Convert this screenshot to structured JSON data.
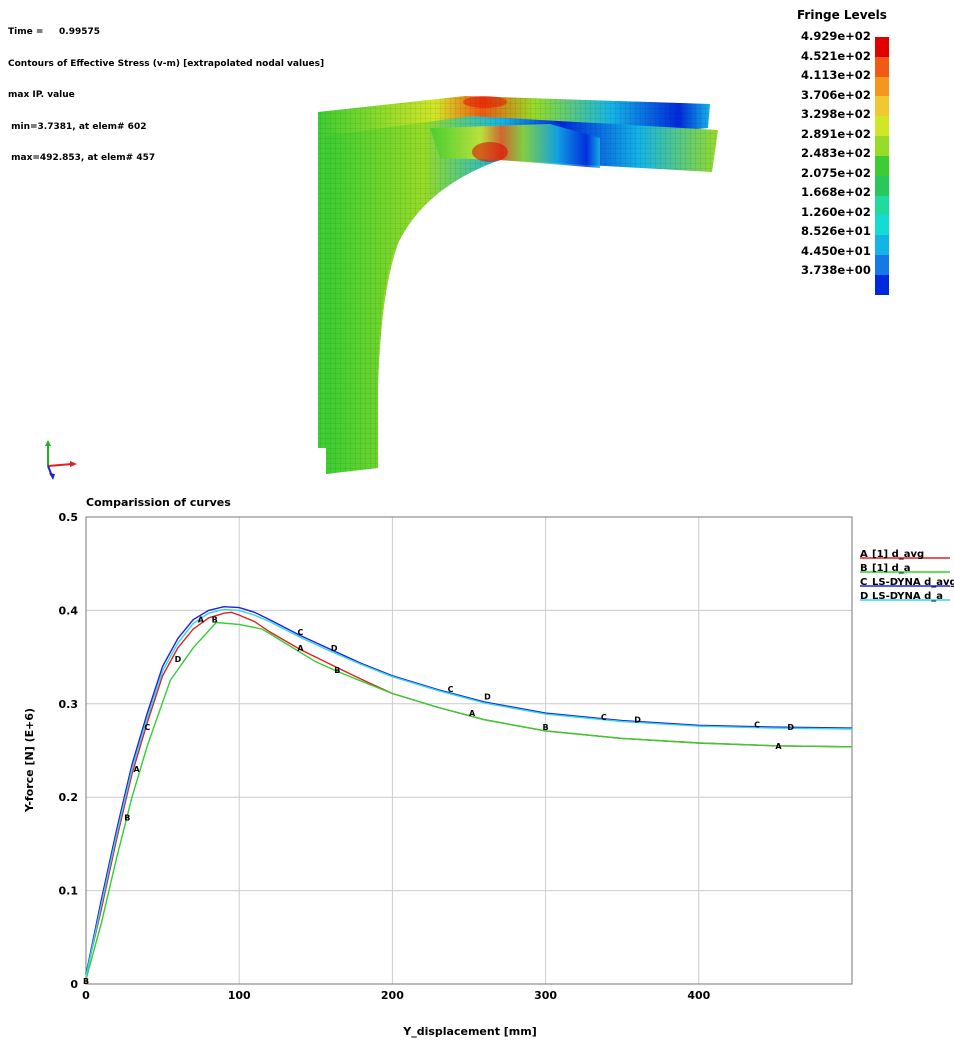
{
  "header": {
    "lines": [
      "Time =     0.99575",
      "Contours of Effective Stress (v-m) [extrapolated nodal values]",
      "max IP. value",
      " min=3.7381, at elem# 602",
      " max=492.853, at elem# 457"
    ]
  },
  "fringe": {
    "title": "Fringe Levels",
    "levels": [
      "4.929e+02",
      "4.521e+02",
      "4.113e+02",
      "3.706e+02",
      "3.298e+02",
      "2.891e+02",
      "2.483e+02",
      "2.075e+02",
      "1.668e+02",
      "1.260e+02",
      "8.526e+01",
      "4.450e+01",
      "3.738e+00"
    ],
    "colors": [
      "#e00000",
      "#f05a14",
      "#f5961e",
      "#f0c832",
      "#d2e628",
      "#96dc28",
      "#3ccd32",
      "#28c85a",
      "#1edca0",
      "#14dcd2",
      "#14b4e6",
      "#1478e6",
      "#0028dc"
    ]
  },
  "chart_data": {
    "type": "line",
    "title": "Comparission of curves",
    "xlabel": "Y_displacement [mm]",
    "ylabel": "Y-force [N] (E+6)",
    "xlim": [
      0,
      500
    ],
    "ylim": [
      0,
      0.5
    ],
    "xticks": [
      "0",
      "100",
      "200",
      "300",
      "400"
    ],
    "yticks": [
      "0",
      "0.1",
      "0.2",
      "0.3",
      "0.4",
      "0.5"
    ],
    "grid": true,
    "legend_position": "top-right",
    "series": [
      {
        "marker": "A",
        "name": "[1] d_avg",
        "color": "#e02020",
        "x": [
          0,
          10,
          20,
          30,
          40,
          50,
          60,
          70,
          80,
          90,
          95,
          100,
          110,
          120,
          140,
          160,
          180,
          200,
          230,
          260,
          300,
          350,
          400,
          450,
          500
        ],
        "y": [
          0.01,
          0.08,
          0.155,
          0.225,
          0.28,
          0.33,
          0.36,
          0.38,
          0.392,
          0.397,
          0.398,
          0.395,
          0.388,
          0.377,
          0.358,
          0.342,
          0.326,
          0.311,
          0.296,
          0.283,
          0.271,
          0.263,
          0.258,
          0.255,
          0.254
        ],
        "markers": [
          [
            33,
            0.23
          ],
          [
            75,
            0.39
          ],
          [
            140,
            0.36
          ],
          [
            252,
            0.29
          ],
          [
            452,
            0.255
          ]
        ]
      },
      {
        "marker": "B",
        "name": "[1] d_a",
        "color": "#30d030",
        "x": [
          0,
          10,
          20,
          30,
          40,
          55,
          70,
          85,
          100,
          115,
          130,
          150,
          165,
          180,
          200,
          230,
          260,
          300,
          350,
          400,
          450,
          500
        ],
        "y": [
          0.005,
          0.065,
          0.135,
          0.2,
          0.255,
          0.325,
          0.36,
          0.387,
          0.385,
          0.38,
          0.365,
          0.345,
          0.334,
          0.324,
          0.311,
          0.296,
          0.283,
          0.271,
          0.263,
          0.258,
          0.255,
          0.254
        ],
        "markers": [
          [
            0,
            0.003
          ],
          [
            27,
            0.178
          ],
          [
            84,
            0.39
          ],
          [
            164,
            0.336
          ],
          [
            300,
            0.275
          ]
        ]
      },
      {
        "marker": "C",
        "name": "LS-DYNA d_avg",
        "color": "#2020e0",
        "x": [
          0,
          10,
          20,
          30,
          40,
          50,
          60,
          70,
          80,
          90,
          100,
          110,
          120,
          140,
          160,
          180,
          200,
          230,
          260,
          300,
          350,
          400,
          450,
          500
        ],
        "y": [
          0.01,
          0.09,
          0.165,
          0.235,
          0.29,
          0.34,
          0.37,
          0.39,
          0.4,
          0.404,
          0.403,
          0.398,
          0.39,
          0.373,
          0.358,
          0.343,
          0.33,
          0.315,
          0.302,
          0.29,
          0.282,
          0.277,
          0.275,
          0.274
        ],
        "markers": [
          [
            40,
            0.275
          ],
          [
            140,
            0.377
          ],
          [
            238,
            0.316
          ],
          [
            338,
            0.286
          ],
          [
            438,
            0.278
          ]
        ]
      },
      {
        "marker": "D",
        "name": "LS-DYNA d_a",
        "color": "#30d8e8",
        "x": [
          0,
          10,
          20,
          30,
          40,
          50,
          60,
          70,
          80,
          90,
          100,
          110,
          120,
          140,
          160,
          180,
          200,
          230,
          260,
          300,
          350,
          400,
          450,
          500
        ],
        "y": [
          0.008,
          0.085,
          0.16,
          0.23,
          0.285,
          0.335,
          0.365,
          0.386,
          0.397,
          0.401,
          0.4,
          0.395,
          0.388,
          0.371,
          0.356,
          0.342,
          0.329,
          0.314,
          0.301,
          0.289,
          0.281,
          0.276,
          0.274,
          0.273
        ],
        "markers": [
          [
            60,
            0.348
          ],
          [
            162,
            0.36
          ],
          [
            262,
            0.308
          ],
          [
            360,
            0.283
          ],
          [
            460,
            0.275
          ]
        ]
      }
    ]
  }
}
